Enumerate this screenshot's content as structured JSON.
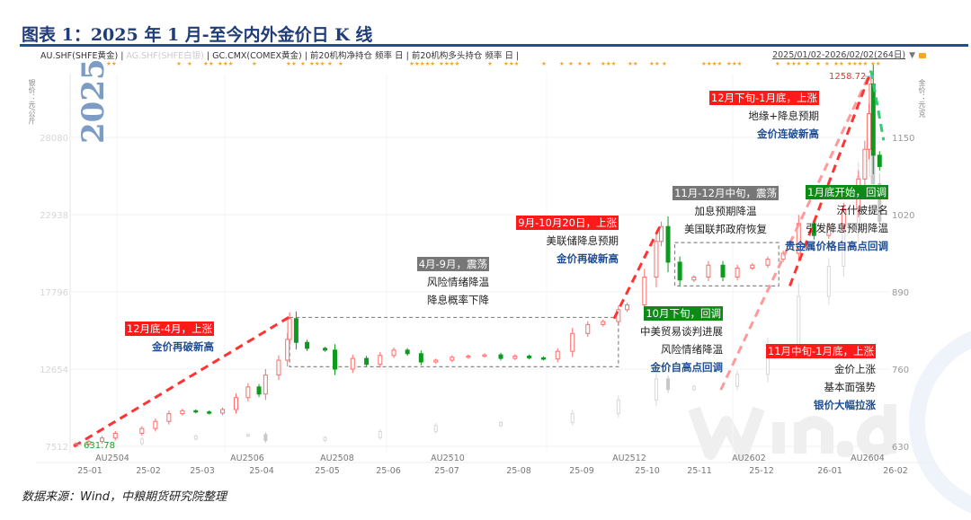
{
  "title": "图表 1：2025 年 1 月-至今内外金价日 K 线",
  "legend": {
    "items": [
      "AU.SHF(SHFE黄金)",
      "AG.SHF(SHFE白银)",
      "GC.CMX(COMEX黄金)",
      "前20机构净持仓 频率 日",
      "前20机构多头持仓 频率 日"
    ],
    "separator": " | ",
    "range": "2025/01/02-2026/02/02(264日)"
  },
  "watermark_year": "2025",
  "watermark_logo": "Win.d",
  "source": "数据来源：Wind，中粮期货研究院整理",
  "colors": {
    "up": "#ff3333",
    "down": "#0e9a1e",
    "silver": "#d0d0d0",
    "title": "#1f3d7a",
    "blue_text": "#1f4e95"
  },
  "chart_data": {
    "type": "candlestick",
    "left_axis": {
      "label": "银价：元/公斤",
      "ticks": [
        7512,
        12654,
        17796,
        22938,
        28080
      ],
      "range": [
        7512,
        28080
      ]
    },
    "right_axis": {
      "label": "金价：元/克",
      "ticks": [
        630,
        760,
        890,
        1020,
        1150
      ],
      "range": [
        630,
        1150
      ]
    },
    "x_ticks": [
      "25-01",
      "25-02",
      "25-03",
      "25-04",
      "25-05",
      "25-06",
      "25-07",
      "25-08",
      "25-09",
      "25-10",
      "25-11",
      "25-12",
      "26-01",
      "26-02"
    ],
    "contract_labels": [
      "AU2504",
      "AU2506",
      "AU2508",
      "AU2510",
      "AU2512",
      "AU2602",
      "AU2604"
    ],
    "max_label": "1258.72",
    "min_label": "631.78",
    "series": [
      {
        "name": "AU.SHF(SHFE黄金)",
        "axis": "right",
        "dates": [
          "2025-01-03",
          "2025-01-10",
          "2025-01-17",
          "2025-01-24",
          "2025-02-07",
          "2025-02-14",
          "2025-02-21",
          "2025-02-28",
          "2025-03-07",
          "2025-03-14",
          "2025-03-21",
          "2025-03-28",
          "2025-04-03",
          "2025-04-08",
          "2025-04-11",
          "2025-04-17",
          "2025-04-21",
          "2025-04-22",
          "2025-04-25",
          "2025-04-30",
          "2025-05-09",
          "2025-05-14",
          "2025-05-23",
          "2025-05-30",
          "2025-06-06",
          "2025-06-13",
          "2025-06-20",
          "2025-06-27",
          "2025-07-04",
          "2025-07-11",
          "2025-07-18",
          "2025-07-25",
          "2025-08-01",
          "2025-08-08",
          "2025-08-15",
          "2025-08-22",
          "2025-08-29",
          "2025-09-05",
          "2025-09-12",
          "2025-09-19",
          "2025-09-26",
          "2025-09-30",
          "2025-10-10",
          "2025-10-17",
          "2025-10-20",
          "2025-10-24",
          "2025-10-31",
          "2025-11-07",
          "2025-11-14",
          "2025-11-21",
          "2025-11-28",
          "2025-12-05",
          "2025-12-12",
          "2025-12-19",
          "2025-12-26",
          "2026-01-02",
          "2026-01-09",
          "2026-01-16",
          "2026-01-23",
          "2026-01-26",
          "2026-01-28",
          "2026-01-29",
          "2026-01-30",
          "2026-02-02"
        ],
        "close": [
          634,
          638,
          644,
          652,
          660,
          672,
          685,
          690,
          688,
          686,
          692,
          712,
          730,
          718,
          750,
          775,
          810,
          845,
          805,
          795,
          792,
          760,
          778,
          768,
          783,
          792,
          786,
          772,
          775,
          780,
          782,
          784,
          778,
          782,
          779,
          777,
          790,
          820,
          835,
          840,
          860,
          868,
          915,
          975,
          1000,
          940,
          910,
          915,
          935,
          915,
          930,
          935,
          945,
          955,
          1005,
          985,
          1000,
          1030,
          1080,
          1130,
          1190,
          1240,
          1120,
          1101
        ]
      },
      {
        "name": "AG.SHF(SHFE白银)",
        "axis": "left",
        "dates": [
          "2025-01-03",
          "2025-02-07",
          "2025-03-07",
          "2025-04-03",
          "2025-04-11",
          "2025-05-09",
          "2025-06-06",
          "2025-07-04",
          "2025-08-01",
          "2025-09-05",
          "2025-09-26",
          "2025-10-17",
          "2025-10-24",
          "2025-11-07",
          "2025-11-28",
          "2025-12-12",
          "2025-12-26",
          "2026-01-09",
          "2026-01-16",
          "2026-01-23",
          "2026-01-29",
          "2026-01-30",
          "2026-02-02"
        ],
        "close": [
          7700,
          8000,
          8200,
          8300,
          7900,
          8100,
          8500,
          8900,
          9100,
          9700,
          10600,
          12000,
          11300,
          11500,
          12300,
          14200,
          17500,
          19500,
          22000,
          25500,
          29000,
          25000,
          22500
        ]
      }
    ],
    "trend_lines": [
      {
        "color": "#ff3333",
        "points": [
          [
            "2025-01-02",
            630
          ],
          [
            "2025-04-22",
            848
          ]
        ]
      },
      {
        "color": "#ff3333",
        "points": [
          [
            "2025-09-24",
            845
          ],
          [
            "2025-10-20",
            1005
          ]
        ]
      },
      {
        "color": "#ff9a9a",
        "points": [
          [
            "2025-11-20",
            725
          ],
          [
            "2026-01-29",
            1262
          ]
        ]
      },
      {
        "color": "#ff3333",
        "points": [
          [
            "2025-12-22",
            900
          ],
          [
            "2026-01-29",
            1262
          ]
        ]
      },
      {
        "color": "#2ecc71",
        "points": [
          [
            "2026-01-29",
            1262
          ],
          [
            "2026-02-04",
            1145
          ]
        ]
      }
    ],
    "range_boxes": [
      {
        "from": "2025-04-22",
        "to": "2025-09-26",
        "low": 764,
        "high": 847
      },
      {
        "from": "2025-10-28",
        "to": "2025-12-17",
        "low": 900,
        "high": 973
      }
    ],
    "annotations": [
      {
        "tag": "12月底-4月，上涨",
        "tag_color": "red",
        "lines": [],
        "conclusion": "金价再破新高"
      },
      {
        "tag": "4月-9月，震荡",
        "tag_color": "gray",
        "lines": [
          "风险情绪降温",
          "降息概率下降"
        ],
        "conclusion": ""
      },
      {
        "tag": "9月-10月20日，上涨",
        "tag_color": "red",
        "lines": [
          "美联储降息预期"
        ],
        "conclusion": "金价再破新高"
      },
      {
        "tag": "11月-12月中旬，震荡",
        "tag_color": "gray",
        "lines": [
          "加息预期降温",
          "美国联邦政府恢复"
        ],
        "conclusion": ""
      },
      {
        "tag": "10月下旬，回调",
        "tag_color": "green",
        "lines": [
          "中美贸易谈判进展",
          "风险情绪降温"
        ],
        "conclusion": "金价自高点回调"
      },
      {
        "tag": "11月中旬-1月底，上涨",
        "tag_color": "red",
        "lines": [
          "金价上涨",
          "基本面强势"
        ],
        "conclusion": "银价大幅拉涨"
      },
      {
        "tag": "12月下旬-1月底，上涨",
        "tag_color": "red",
        "lines": [
          "地缘+降息预期"
        ],
        "conclusion": "金价连破新高"
      },
      {
        "tag": "1月底开始，回调",
        "tag_color": "green",
        "lines": [
          "沃什被提名",
          "引发降息预期降温"
        ],
        "conclusion": "贵金属价格自高点回调"
      }
    ]
  }
}
